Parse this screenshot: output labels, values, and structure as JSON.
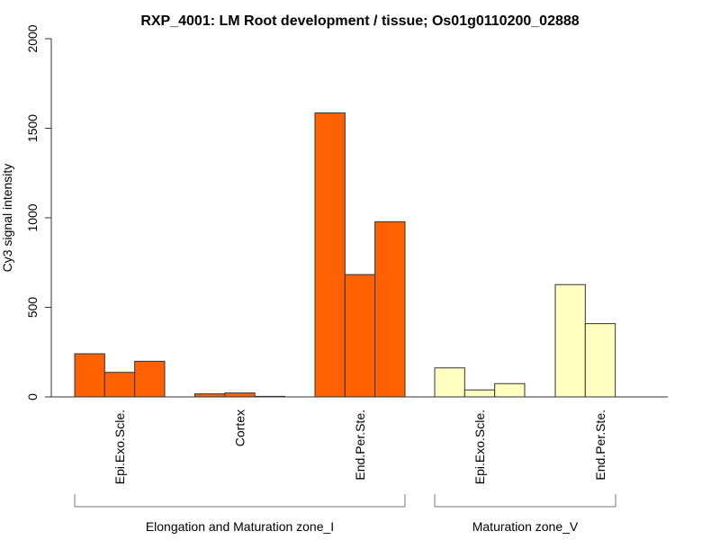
{
  "chart_data": {
    "type": "bar",
    "title": "RXP_4001: LM Root development / tissue; Os01g0110200_02888",
    "xlabel": "",
    "ylabel": "Cy3 signal intensity",
    "ylim": [
      0,
      2000
    ],
    "yticks": [
      0,
      500,
      1000,
      1500,
      2000
    ],
    "ytick_labels": [
      "0",
      "500",
      "1000",
      "1500",
      "2000"
    ],
    "grid": false,
    "categories": [
      "Epi.Exo.Scle.",
      "Cortex",
      "End.Per.Ste.",
      "Epi.Exo.Scle.",
      "End.Per.Ste."
    ],
    "groups": [
      {
        "label": "Elongation and Maturation zone_I",
        "categories": [
          0,
          1,
          2
        ],
        "color": "#FF6000"
      },
      {
        "label": "Maturation zone_V",
        "categories": [
          3,
          4
        ],
        "color": "#FFFFC0"
      }
    ],
    "series_values": [
      [
        241,
        137,
        199
      ],
      [
        17,
        22,
        3
      ],
      [
        1586,
        683,
        978
      ],
      [
        162,
        39,
        74
      ],
      [
        627,
        409
      ]
    ]
  }
}
